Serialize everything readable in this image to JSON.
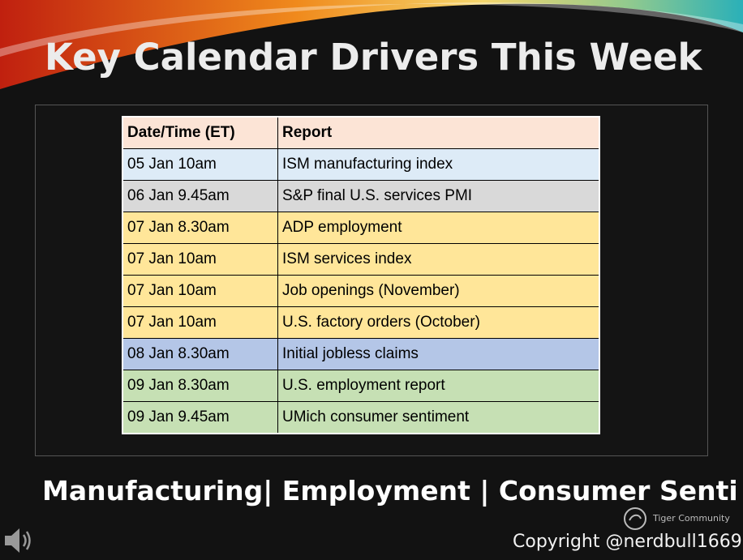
{
  "header": {
    "title": "Key Calendar Drivers This Week"
  },
  "table": {
    "columns": [
      "Date/Time (ET)",
      "Report"
    ],
    "rows": [
      [
        "05 Jan 10am",
        "ISM manufacturing index"
      ],
      [
        "06 Jan 9.45am",
        "S&P final U.S. services PMI"
      ],
      [
        "07 Jan 8.30am",
        "ADP employment"
      ],
      [
        "07 Jan 10am",
        "ISM services index"
      ],
      [
        "07 Jan 10am",
        "Job openings (November)"
      ],
      [
        "07 Jan 10am",
        "U.S. factory orders (October)"
      ],
      [
        "08 Jan 8.30am",
        "Initial jobless claims"
      ],
      [
        "09 Jan 8.30am",
        "U.S. employment report"
      ],
      [
        "09 Jan 9.45am",
        "UMich consumer sentiment"
      ]
    ]
  },
  "footer": {
    "topics": "Manufacturing| Employment | Consumer Senti",
    "watermark": "Tiger Community",
    "copyright": "Copyright @nerdbull1669"
  }
}
